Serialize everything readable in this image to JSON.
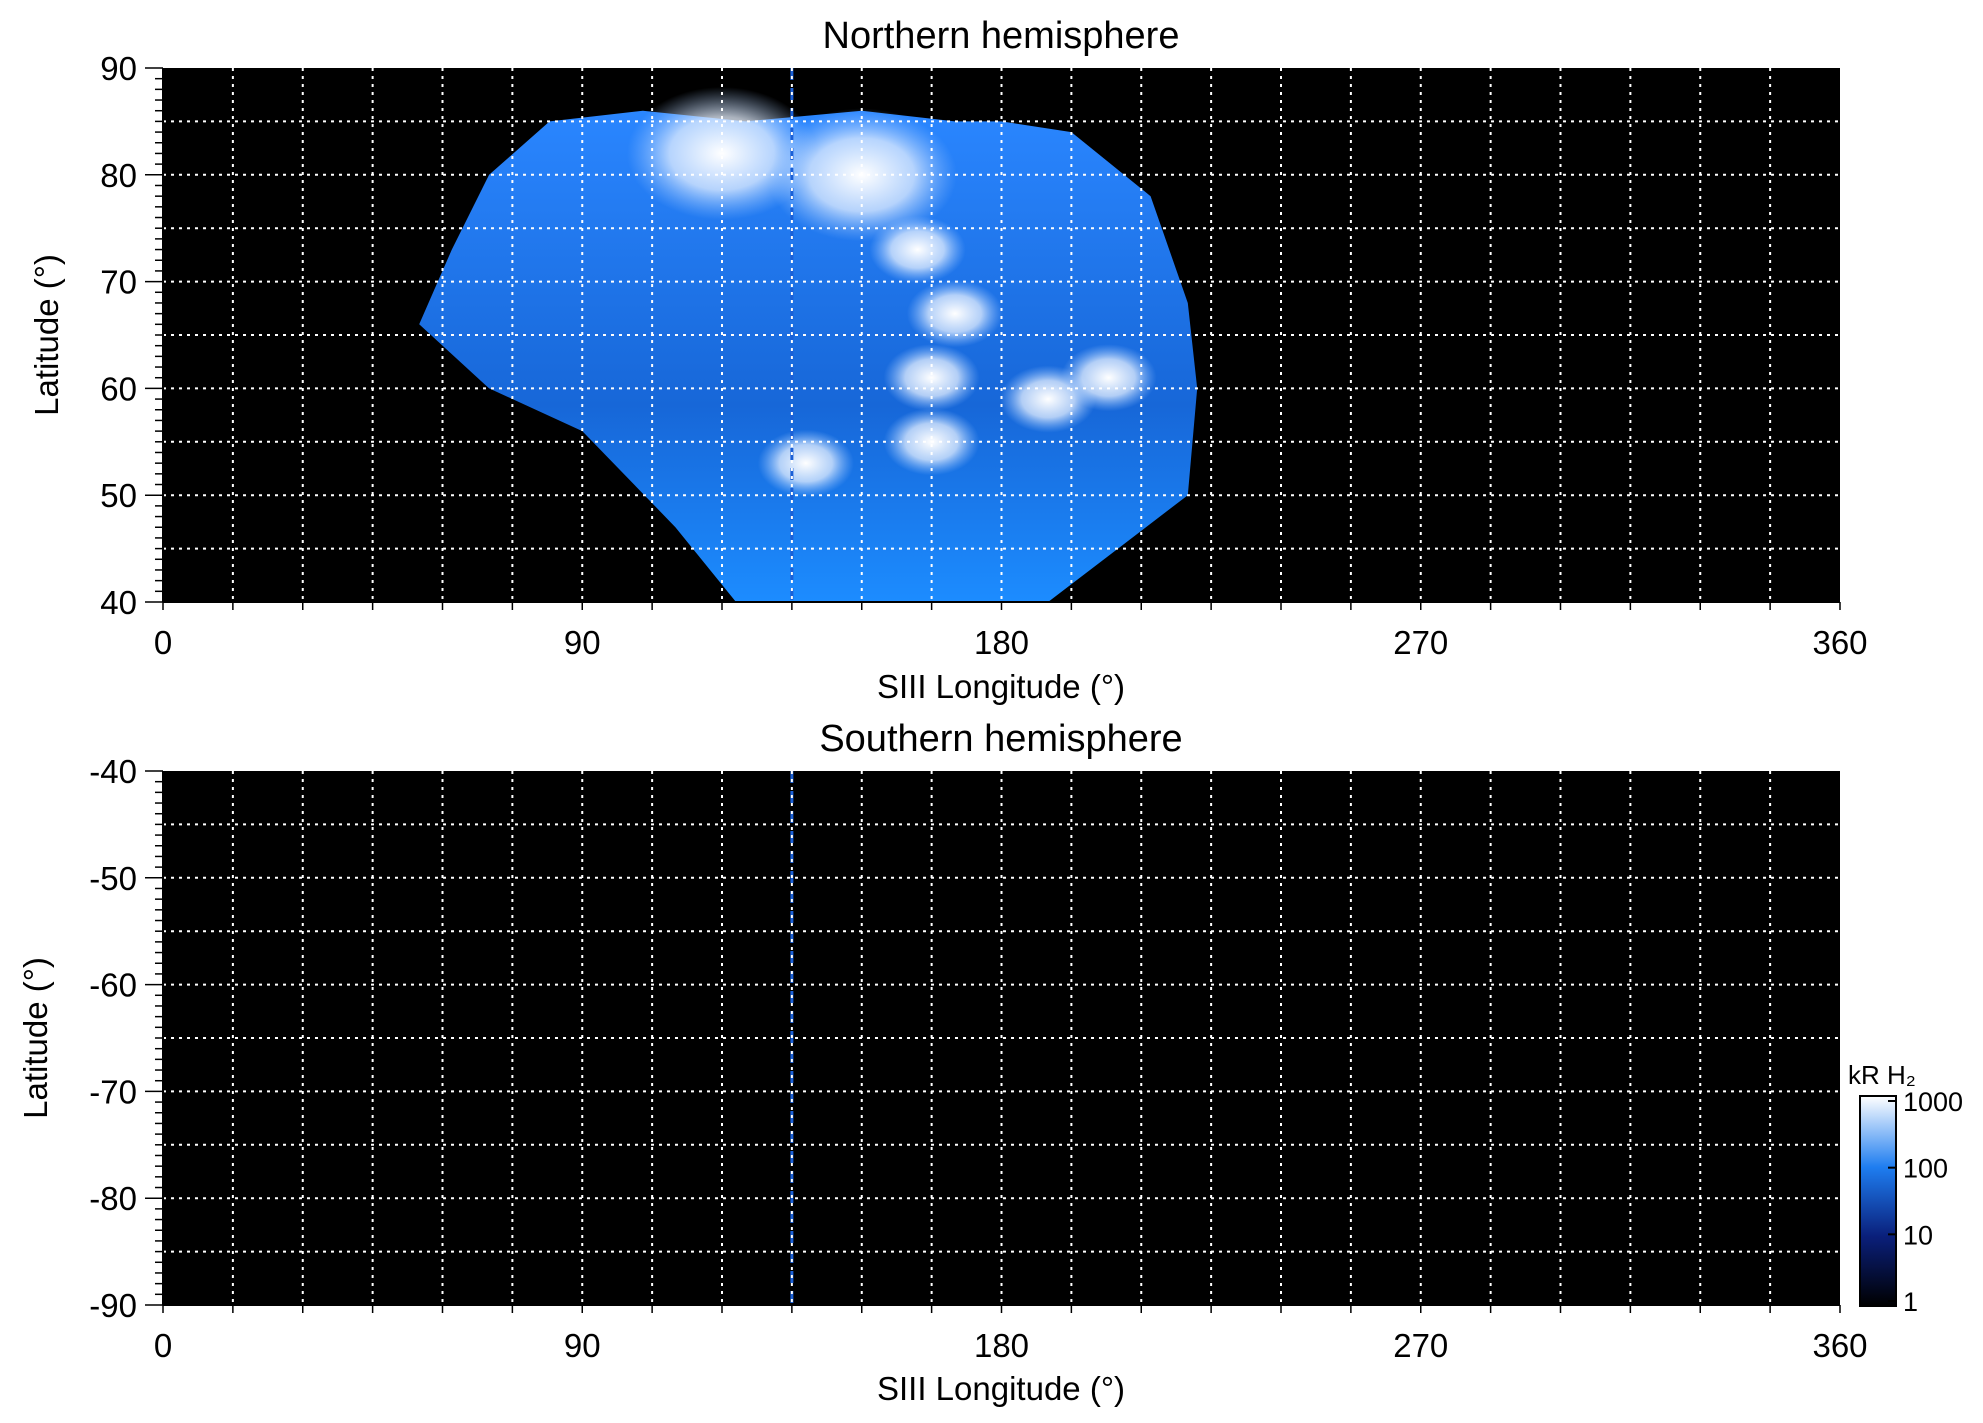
{
  "chart_data": [
    {
      "type": "heatmap",
      "title": "Northern hemisphere",
      "xlabel": "SIII Longitude (°)",
      "ylabel": "Latitude (°)",
      "xlim": [
        0,
        360
      ],
      "ylim": [
        40,
        90
      ],
      "xticks": [
        0,
        90,
        180,
        270,
        360
      ],
      "yticks": [
        40,
        50,
        60,
        70,
        80,
        90
      ],
      "x_gridlines": [
        15,
        30,
        45,
        60,
        75,
        90,
        105,
        120,
        135,
        150,
        165,
        180,
        195,
        210,
        225,
        240,
        255,
        270,
        285,
        300,
        315,
        330,
        345
      ],
      "y_gridlines": [
        45,
        50,
        55,
        60,
        65,
        70,
        75,
        80,
        85
      ],
      "grid": true,
      "background": "#000000",
      "reference_longitude": 135,
      "coverage_region": {
        "left_edge": [
          [
            55,
            66
          ],
          [
            62,
            73
          ],
          [
            70,
            80
          ],
          [
            83,
            85
          ]
        ],
        "top_edge": [
          [
            83,
            85
          ],
          [
            103,
            86
          ],
          [
            125,
            85
          ],
          [
            150,
            86
          ],
          [
            170,
            85
          ],
          [
            180,
            85
          ],
          [
            195,
            84
          ]
        ],
        "right_edge": [
          [
            195,
            84
          ],
          [
            212,
            78
          ],
          [
            220,
            68
          ],
          [
            222,
            60
          ],
          [
            220,
            50
          ]
        ],
        "bottom_edge": [
          [
            220,
            50
          ],
          [
            205,
            45
          ],
          [
            190,
            40
          ],
          [
            123,
            40
          ],
          [
            110,
            47
          ],
          [
            90,
            56
          ],
          [
            70,
            60
          ],
          [
            55,
            66
          ]
        ]
      },
      "bright_features": [
        {
          "lon": 120,
          "lat": 82,
          "level": "very bright"
        },
        {
          "lon": 150,
          "lat": 80,
          "level": "very bright"
        },
        {
          "lon": 162,
          "lat": 73,
          "level": "bright"
        },
        {
          "lon": 170,
          "lat": 67,
          "level": "bright"
        },
        {
          "lon": 165,
          "lat": 61,
          "level": "bright"
        },
        {
          "lon": 190,
          "lat": 59,
          "level": "bright"
        },
        {
          "lon": 203,
          "lat": 61,
          "level": "bright"
        },
        {
          "lon": 165,
          "lat": 55,
          "level": "bright"
        },
        {
          "lon": 138,
          "lat": 53,
          "level": "bright"
        }
      ]
    },
    {
      "type": "heatmap",
      "title": "Southern hemisphere",
      "xlabel": "SIII Longitude (°)",
      "ylabel": "Latitude (°)",
      "xlim": [
        0,
        360
      ],
      "ylim": [
        -90,
        -40
      ],
      "xticks": [
        0,
        90,
        180,
        270,
        360
      ],
      "yticks": [
        -40,
        -50,
        -60,
        -70,
        -80,
        -90
      ],
      "x_gridlines": [
        15,
        30,
        45,
        60,
        75,
        90,
        105,
        120,
        135,
        150,
        165,
        180,
        195,
        210,
        225,
        240,
        255,
        270,
        285,
        300,
        315,
        330,
        345
      ],
      "y_gridlines": [
        -45,
        -50,
        -55,
        -60,
        -65,
        -70,
        -75,
        -80,
        -85
      ],
      "grid": true,
      "background": "#000000",
      "reference_longitude": 135,
      "colorbar": {
        "label": "kR H₂",
        "scale": "log",
        "ticks": [
          1,
          10,
          100,
          1000
        ],
        "colors": [
          "#000000",
          "#0a1f7a",
          "#1e7df0",
          "#ffffff"
        ]
      }
    }
  ]
}
